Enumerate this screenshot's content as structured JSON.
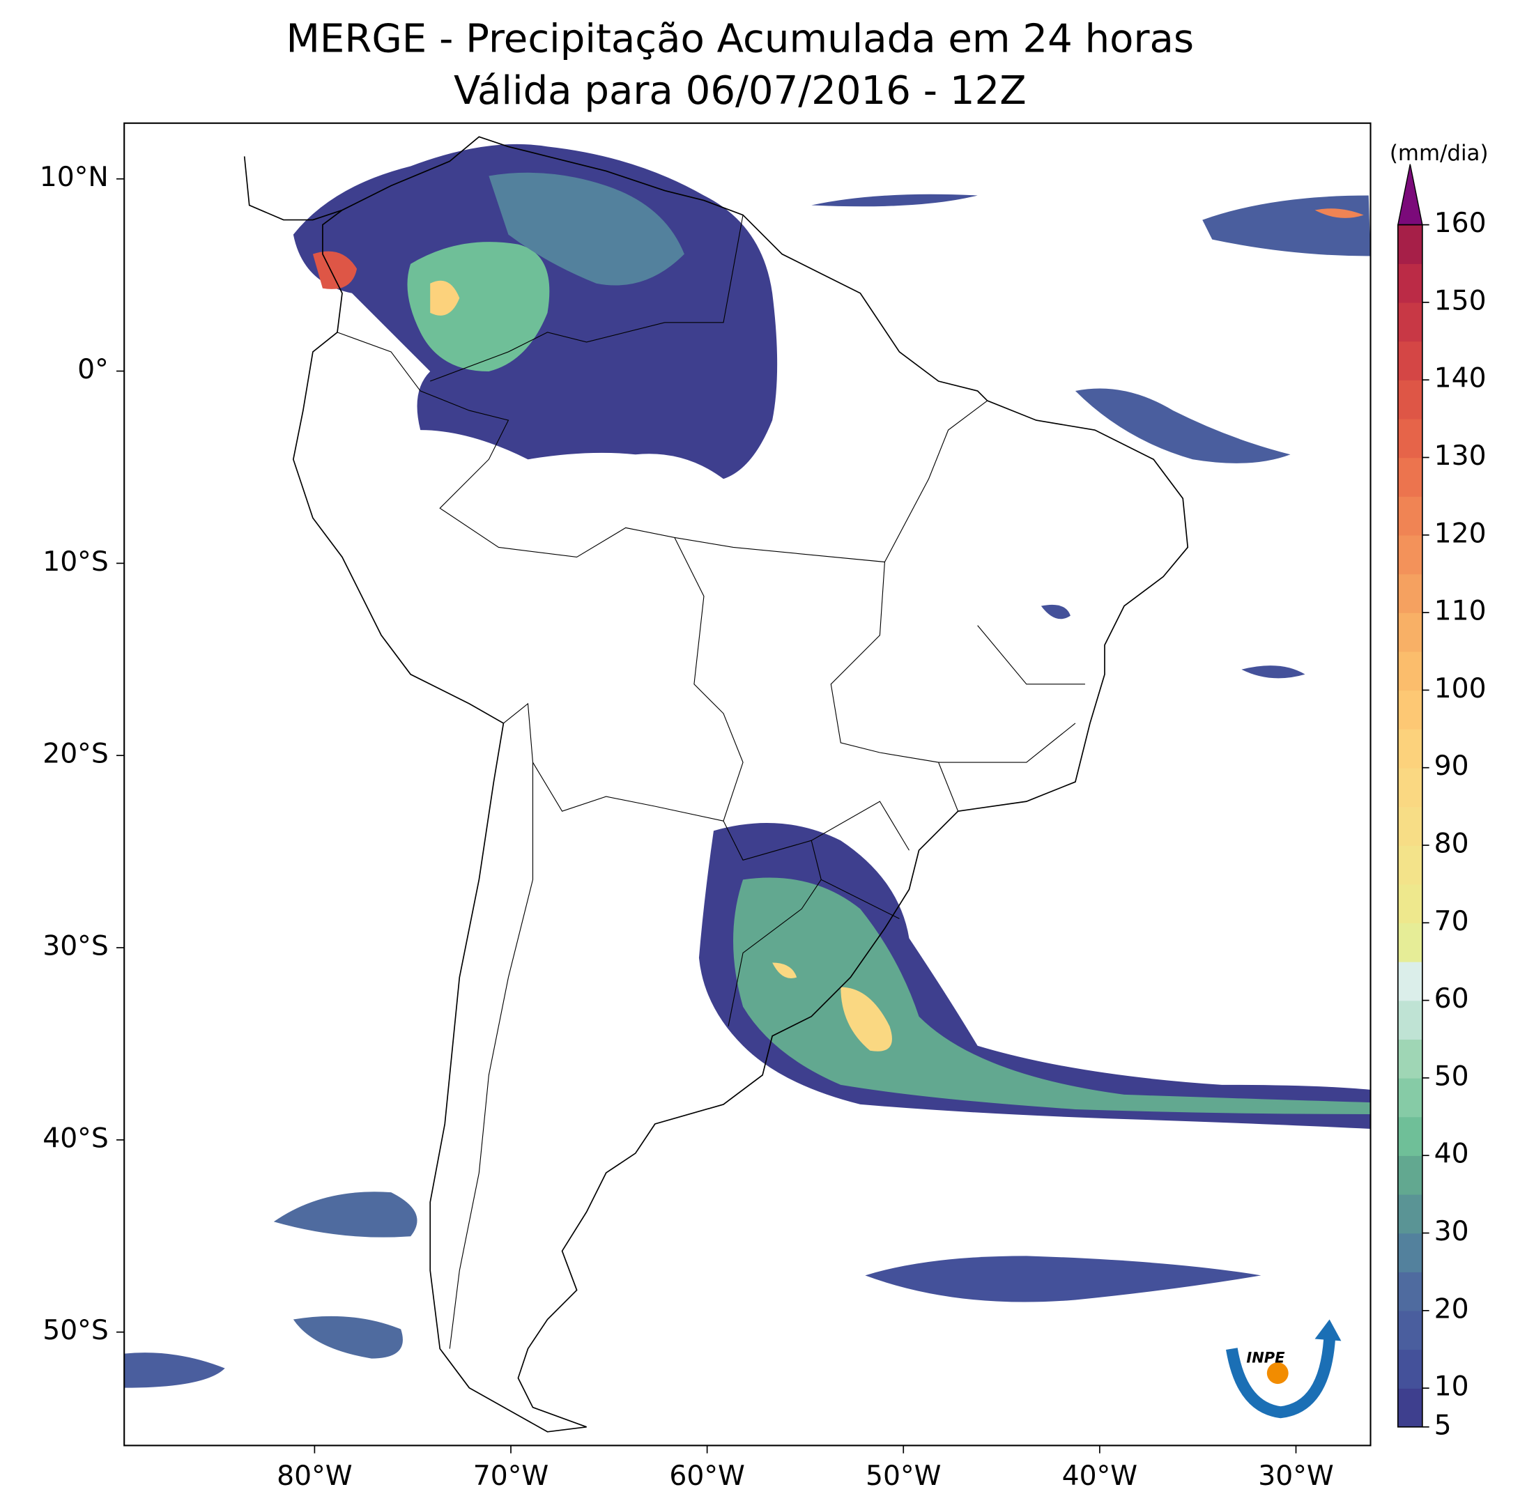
{
  "chart_data": {
    "type": "filled-contour-map",
    "title": "MERGE - Precipitação Acumulada em 24 horas",
    "subtitle": "Válida para 06/07/2016 - 12Z",
    "xlim": [
      -89.7,
      -26.2
    ],
    "ylim": [
      -55.9,
      12.9
    ],
    "xticks": [
      {
        "value": -80,
        "label": "80°W"
      },
      {
        "value": -70,
        "label": "70°W"
      },
      {
        "value": -60,
        "label": "60°W"
      },
      {
        "value": -50,
        "label": "50°W"
      },
      {
        "value": -40,
        "label": "40°W"
      },
      {
        "value": -30,
        "label": "30°W"
      }
    ],
    "yticks": [
      {
        "value": 10,
        "label": "10°N"
      },
      {
        "value": 0,
        "label": "0°"
      },
      {
        "value": -10,
        "label": "10°S"
      },
      {
        "value": -20,
        "label": "20°S"
      },
      {
        "value": -30,
        "label": "30°S"
      },
      {
        "value": -40,
        "label": "40°S"
      },
      {
        "value": -50,
        "label": "50°S"
      }
    ],
    "colorbar": {
      "label": "(mm/dia)",
      "lim": [
        5,
        160
      ],
      "ticks": [
        5,
        10,
        20,
        30,
        40,
        50,
        60,
        70,
        80,
        90,
        100,
        110,
        120,
        130,
        140,
        150,
        160
      ],
      "colors": [
        "#3e3f8e",
        "#44519a",
        "#4a5e9e",
        "#4f6b9f",
        "#53819d",
        "#5a9495",
        "#62a890",
        "#6fbf98",
        "#86cba6",
        "#9fd6b5",
        "#bfe3d4",
        "#dbeeea",
        "#e6ed97",
        "#eee88d",
        "#f3e38a",
        "#f7dd86",
        "#fad882",
        "#fcd27c",
        "#fdc874",
        "#fbbd6c",
        "#f8b066",
        "#f5a160",
        "#f3925a",
        "#f08454",
        "#ec744e",
        "#e66449",
        "#de5646",
        "#d44645",
        "#c83845",
        "#bb2b46",
        "#a61f48"
      ],
      "extend_color": "#7b0a7a"
    },
    "logo": "INPE"
  }
}
